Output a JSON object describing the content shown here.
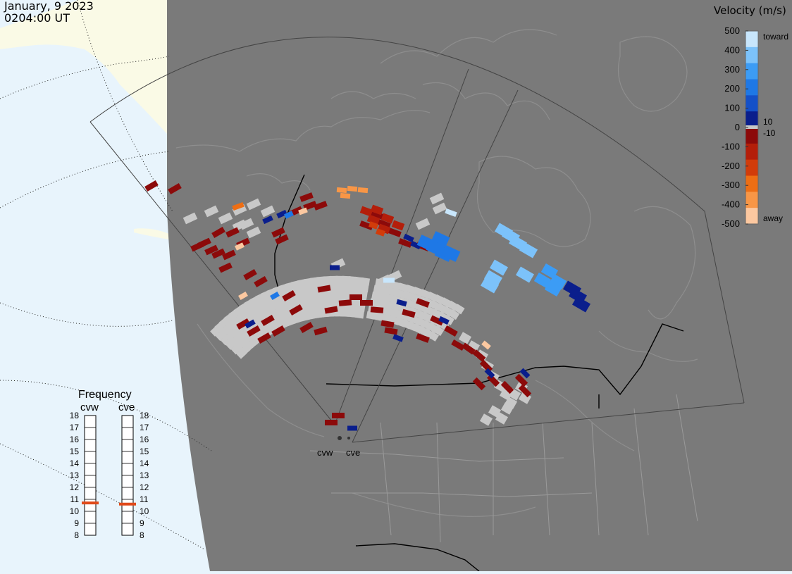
{
  "header": {
    "date": "January, 9 2023",
    "time": "0204:00 UT"
  },
  "colorbar": {
    "title": "Velocity (m/s)",
    "ticks": [
      "500",
      "400",
      "300",
      "200",
      "100",
      "0",
      "-100",
      "-200",
      "-300",
      "-400",
      "-500"
    ],
    "toward_label": "toward",
    "away_label": "away",
    "plus_ten_label": "10",
    "minus_ten_label": "-10",
    "colors_toward": [
      "#0a1e8c",
      "#1450c8",
      "#1e78e6",
      "#3c9cf5",
      "#7cc2fa",
      "#c8e6fc"
    ],
    "colors_away": [
      "#8c0a0a",
      "#b41e0a",
      "#d23c0a",
      "#ee6e14",
      "#f89646",
      "#fcc8a0"
    ]
  },
  "frequency_panel": {
    "title": "Frequency",
    "radars": [
      {
        "name": "cvw",
        "selected_mhz": 10.7
      },
      {
        "name": "cve",
        "selected_mhz": 10.6
      }
    ],
    "labels": [
      "18",
      "17",
      "16",
      "15",
      "14",
      "13",
      "12",
      "11",
      "10",
      "9",
      "8"
    ]
  },
  "radars": [
    {
      "name": "cvw"
    },
    {
      "name": "cve"
    }
  ],
  "colors": {
    "ocean": "#e8f4fc",
    "land": "#7a7a7a",
    "land_unlit": "#fafae6",
    "ground_scatter": "#c8c8c8",
    "selected_freq": "#e04a1a"
  }
}
